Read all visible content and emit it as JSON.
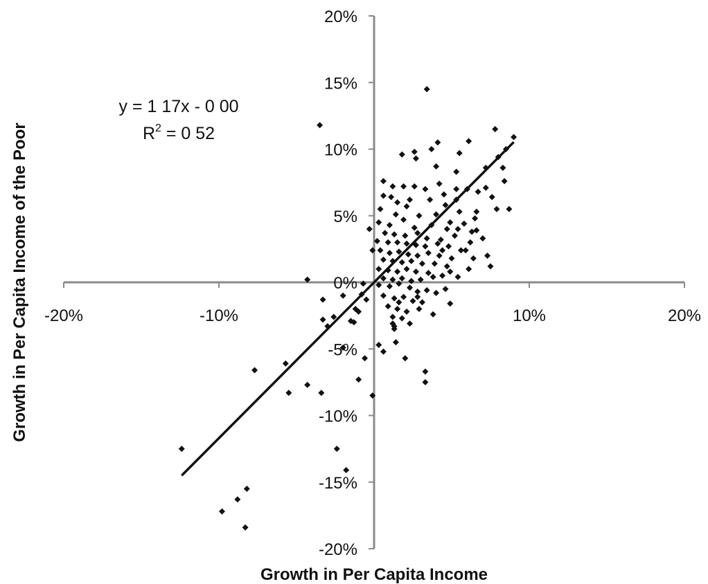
{
  "chart_data": {
    "type": "scatter",
    "title": "",
    "xlabel": "Growth in Per Capita Income",
    "ylabel": "Growth in Per Capita Income of the Poor",
    "xlim": [
      -0.2,
      0.2
    ],
    "ylim": [
      -0.2,
      0.2
    ],
    "x_ticks": [
      {
        "value": -0.2,
        "label": "-20%"
      },
      {
        "value": -0.1,
        "label": "-10%"
      },
      {
        "value": 0,
        "label": "0%"
      },
      {
        "value": 0.1,
        "label": "10%"
      },
      {
        "value": 0.2,
        "label": "20%"
      }
    ],
    "y_ticks": [
      {
        "value": 0.2,
        "label": "20%"
      },
      {
        "value": 0.15,
        "label": "15%"
      },
      {
        "value": 0.1,
        "label": "10%"
      },
      {
        "value": 0.05,
        "label": "5%"
      },
      {
        "value": 0,
        "label": "0%"
      },
      {
        "value": -0.05,
        "label": "-5%"
      },
      {
        "value": -0.1,
        "label": "-10%"
      },
      {
        "value": -0.15,
        "label": "-15%"
      },
      {
        "value": -0.2,
        "label": "-20%"
      }
    ],
    "grid": false,
    "axes_through_origin": true,
    "marker_color": "#111111",
    "line_color": "#111111",
    "trendline": {
      "equation": "y = 1 17x - 0 00",
      "r2_prefix": "R",
      "r2_exp": "2",
      "r2_rest": " = 0 52",
      "slope": 1.17,
      "intercept": 0,
      "x_range": [
        -0.124,
        0.09
      ]
    },
    "series": [
      {
        "points": [
          [
            -0.124,
            -0.125
          ],
          [
            -0.098,
            -0.172
          ],
          [
            -0.088,
            -0.163
          ],
          [
            -0.082,
            -0.155
          ],
          [
            -0.083,
            -0.184
          ],
          [
            -0.077,
            -0.066
          ],
          [
            -0.057,
            -0.061
          ],
          [
            -0.055,
            -0.083
          ],
          [
            -0.043,
            -0.077
          ],
          [
            -0.034,
            -0.083
          ],
          [
            -0.043,
            0.002
          ],
          [
            -0.033,
            -0.013
          ],
          [
            -0.033,
            -0.028
          ],
          [
            -0.03,
            -0.033
          ],
          [
            -0.026,
            -0.026
          ],
          [
            -0.02,
            -0.049
          ],
          [
            -0.02,
            -0.01
          ],
          [
            -0.015,
            -0.029
          ],
          [
            -0.013,
            -0.03
          ],
          [
            -0.012,
            -0.02
          ],
          [
            -0.01,
            -0.022
          ],
          [
            -0.008,
            -0.009
          ],
          [
            -0.007,
            -0.001
          ],
          [
            -0.005,
            -0.013
          ],
          [
            -0.006,
            -0.057
          ],
          [
            -0.01,
            -0.073
          ],
          [
            -0.001,
            -0.085
          ],
          [
            -0.024,
            -0.125
          ],
          [
            -0.018,
            -0.141
          ],
          [
            -0.035,
            0.118
          ],
          [
            0.003,
            -0.047
          ],
          [
            0.006,
            -0.052
          ],
          [
            0.012,
            -0.031
          ],
          [
            0.013,
            -0.035
          ],
          [
            0.016,
            -0.015
          ],
          [
            0.014,
            -0.045
          ],
          [
            0.02,
            -0.057
          ],
          [
            0.023,
            -0.031
          ],
          [
            0.028,
            -0.011
          ],
          [
            0.033,
            -0.067
          ],
          [
            0.033,
            -0.075
          ],
          [
            0.038,
            -0.024
          ],
          [
            0.046,
            -0.005
          ],
          [
            0.049,
            -0.016
          ],
          [
            0.034,
            0.145
          ],
          [
            0.018,
            0.096
          ],
          [
            0.026,
            0.098
          ],
          [
            0.027,
            0.093
          ],
          [
            0.037,
            0.1
          ],
          [
            0.041,
            0.105
          ],
          [
            0.055,
            0.097
          ],
          [
            0.061,
            0.106
          ],
          [
            0.078,
            0.115
          ],
          [
            0.09,
            0.109
          ],
          [
            0.085,
            0.1
          ],
          [
            0.08,
            0.094
          ],
          [
            0.072,
            0.086
          ],
          [
            0.083,
            0.086
          ],
          [
            0.053,
            0.083
          ],
          [
            0.04,
            0.087
          ],
          [
            0.006,
            0.076
          ],
          [
            0.012,
            0.072
          ],
          [
            0.019,
            0.072
          ],
          [
            0.026,
            0.072
          ],
          [
            0.033,
            0.07
          ],
          [
            0.042,
            0.074
          ],
          [
            0.053,
            0.07
          ],
          [
            0.06,
            0.07
          ],
          [
            0.067,
            0.068
          ],
          [
            0.072,
            0.071
          ],
          [
            0.084,
            0.076
          ],
          [
            0.076,
            0.064
          ],
          [
            0.079,
            0.055
          ],
          [
            0.087,
            0.055
          ],
          [
            0.066,
            0.053
          ],
          [
            0.045,
            0.066
          ],
          [
            0.053,
            0.062
          ],
          [
            0.006,
            0.065
          ],
          [
            0.015,
            0.06
          ],
          [
            0.021,
            0.057
          ],
          [
            0.036,
            0.062
          ],
          [
            0.046,
            0.058
          ],
          [
            0.014,
            0.051
          ],
          [
            0.029,
            0.05
          ],
          [
            0.04,
            0.051
          ],
          [
            0.055,
            0.053
          ],
          [
            0.065,
            0.048
          ],
          [
            0.003,
            0.045
          ],
          [
            0.01,
            0.043
          ],
          [
            0.019,
            0.047
          ],
          [
            0.026,
            0.041
          ],
          [
            0.037,
            0.043
          ],
          [
            0.047,
            0.04
          ],
          [
            0.054,
            0.04
          ],
          [
            0.063,
            0.038
          ],
          [
            -0.003,
            0.04
          ],
          [
            0.007,
            0.037
          ],
          [
            0.013,
            0.036
          ],
          [
            0.02,
            0.035
          ],
          [
            0.028,
            0.037
          ],
          [
            0.034,
            0.033
          ],
          [
            0.043,
            0.032
          ],
          [
            0.052,
            0.035
          ],
          [
            0.062,
            0.03
          ],
          [
            0.07,
            0.033
          ],
          [
            0.002,
            0.031
          ],
          [
            0.009,
            0.03
          ],
          [
            0.015,
            0.03
          ],
          [
            0.021,
            0.029
          ],
          [
            0.027,
            0.028
          ],
          [
            0.033,
            0.027
          ],
          [
            0.041,
            0.029
          ],
          [
            0.048,
            0.027
          ],
          [
            0.056,
            0.024
          ],
          [
            -0.001,
            0.024
          ],
          [
            0.004,
            0.024
          ],
          [
            0.01,
            0.022
          ],
          [
            0.016,
            0.023
          ],
          [
            0.022,
            0.021
          ],
          [
            0.028,
            0.02
          ],
          [
            0.035,
            0.022
          ],
          [
            0.042,
            0.02
          ],
          [
            0.05,
            0.018
          ],
          [
            0.073,
            0.02
          ],
          [
            0.006,
            0.017
          ],
          [
            0.012,
            0.016
          ],
          [
            0.018,
            0.015
          ],
          [
            0.024,
            0.016
          ],
          [
            0.031,
            0.014
          ],
          [
            0.039,
            0.014
          ],
          [
            0.047,
            0.012
          ],
          [
            0.061,
            0.01
          ],
          [
            0.075,
            0.012
          ],
          [
            0.003,
            0.01
          ],
          [
            0.009,
            0.009
          ],
          [
            0.015,
            0.008
          ],
          [
            0.021,
            0.01
          ],
          [
            0.027,
            0.008
          ],
          [
            0.035,
            0.007
          ],
          [
            0.044,
            0.005
          ],
          [
            0.054,
            0.004
          ],
          [
            0.006,
            0.003
          ],
          [
            0.012,
            0.002
          ],
          [
            0.018,
            0.003
          ],
          [
            0.024,
            0.001
          ],
          [
            0.03,
            0.002
          ],
          [
            0.038,
            0.004
          ],
          [
            0.049,
            0.008
          ],
          [
            0.003,
            -0.002
          ],
          [
            0.01,
            -0.003
          ],
          [
            0.016,
            -0.001
          ],
          [
            0.023,
            -0.004
          ],
          [
            0.028,
            -0.007
          ],
          [
            0.034,
            -0.006
          ],
          [
            0.04,
            -0.008
          ],
          [
            0.006,
            -0.01
          ],
          [
            0.013,
            -0.012
          ],
          [
            0.019,
            -0.011
          ],
          [
            0.025,
            -0.014
          ],
          [
            0.031,
            -0.015
          ],
          [
            0.009,
            -0.018
          ],
          [
            0.015,
            -0.02
          ],
          [
            0.021,
            -0.022
          ],
          [
            0.029,
            -0.02
          ],
          [
            0.012,
            -0.026
          ],
          [
            0.018,
            -0.027
          ],
          [
            0.013,
            -0.033
          ],
          [
            0.059,
            0.024
          ],
          [
            0.064,
            0.018
          ],
          [
            0.044,
            0.024
          ],
          [
            0.066,
            0.039
          ],
          [
            0.058,
            0.044
          ],
          [
            0.049,
            0.045
          ],
          [
            0.004,
            0.055
          ],
          [
            0.011,
            0.064
          ],
          [
            0.023,
            0.062
          ]
        ]
      }
    ]
  }
}
